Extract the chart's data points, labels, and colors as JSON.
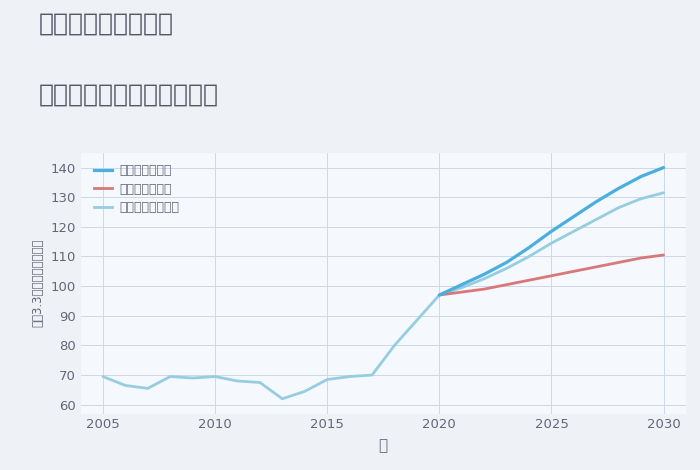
{
  "title_line1": "奈良県大和朝倉駅の",
  "title_line2": "中古マンションの価格推移",
  "xlabel": "年",
  "ylabel": "坪（3.3㎡）単価（万円）",
  "xlim": [
    2004,
    2031
  ],
  "ylim": [
    57,
    145
  ],
  "yticks": [
    60,
    70,
    80,
    90,
    100,
    110,
    120,
    130,
    140
  ],
  "xticks": [
    2005,
    2010,
    2015,
    2020,
    2025,
    2030
  ],
  "bg_color": "#eef2f7",
  "plot_bg_color": "#f5f8fc",
  "grid_color": "#ccd8e8",
  "good_color": "#4aaee0",
  "bad_color": "#d97878",
  "normal_color": "#96cde0",
  "title_color": "#555566",
  "tick_color": "#666677",
  "good_label": "グッドシナリオ",
  "bad_label": "バッドシナリオ",
  "normal_label": "ノーマルシナリオ",
  "historical_years": [
    2005,
    2006,
    2007,
    2008,
    2009,
    2010,
    2011,
    2012,
    2013,
    2014,
    2015,
    2016,
    2017,
    2018,
    2019,
    2020
  ],
  "historical_values": [
    69.5,
    66.5,
    65.5,
    69.5,
    69.0,
    69.5,
    68.0,
    67.5,
    62.0,
    64.5,
    68.5,
    69.5,
    70.0,
    80.0,
    88.5,
    97.0
  ],
  "future_years": [
    2020,
    2021,
    2022,
    2023,
    2024,
    2025,
    2026,
    2027,
    2028,
    2029,
    2030
  ],
  "good_values": [
    97.0,
    100.5,
    104.0,
    108.0,
    113.0,
    118.5,
    123.5,
    128.5,
    133.0,
    137.0,
    140.0
  ],
  "bad_values": [
    97.0,
    98.0,
    99.0,
    100.5,
    102.0,
    103.5,
    105.0,
    106.5,
    108.0,
    109.5,
    110.5
  ],
  "normal_values": [
    97.0,
    99.5,
    102.5,
    106.0,
    110.0,
    114.5,
    118.5,
    122.5,
    126.5,
    129.5,
    131.5
  ]
}
